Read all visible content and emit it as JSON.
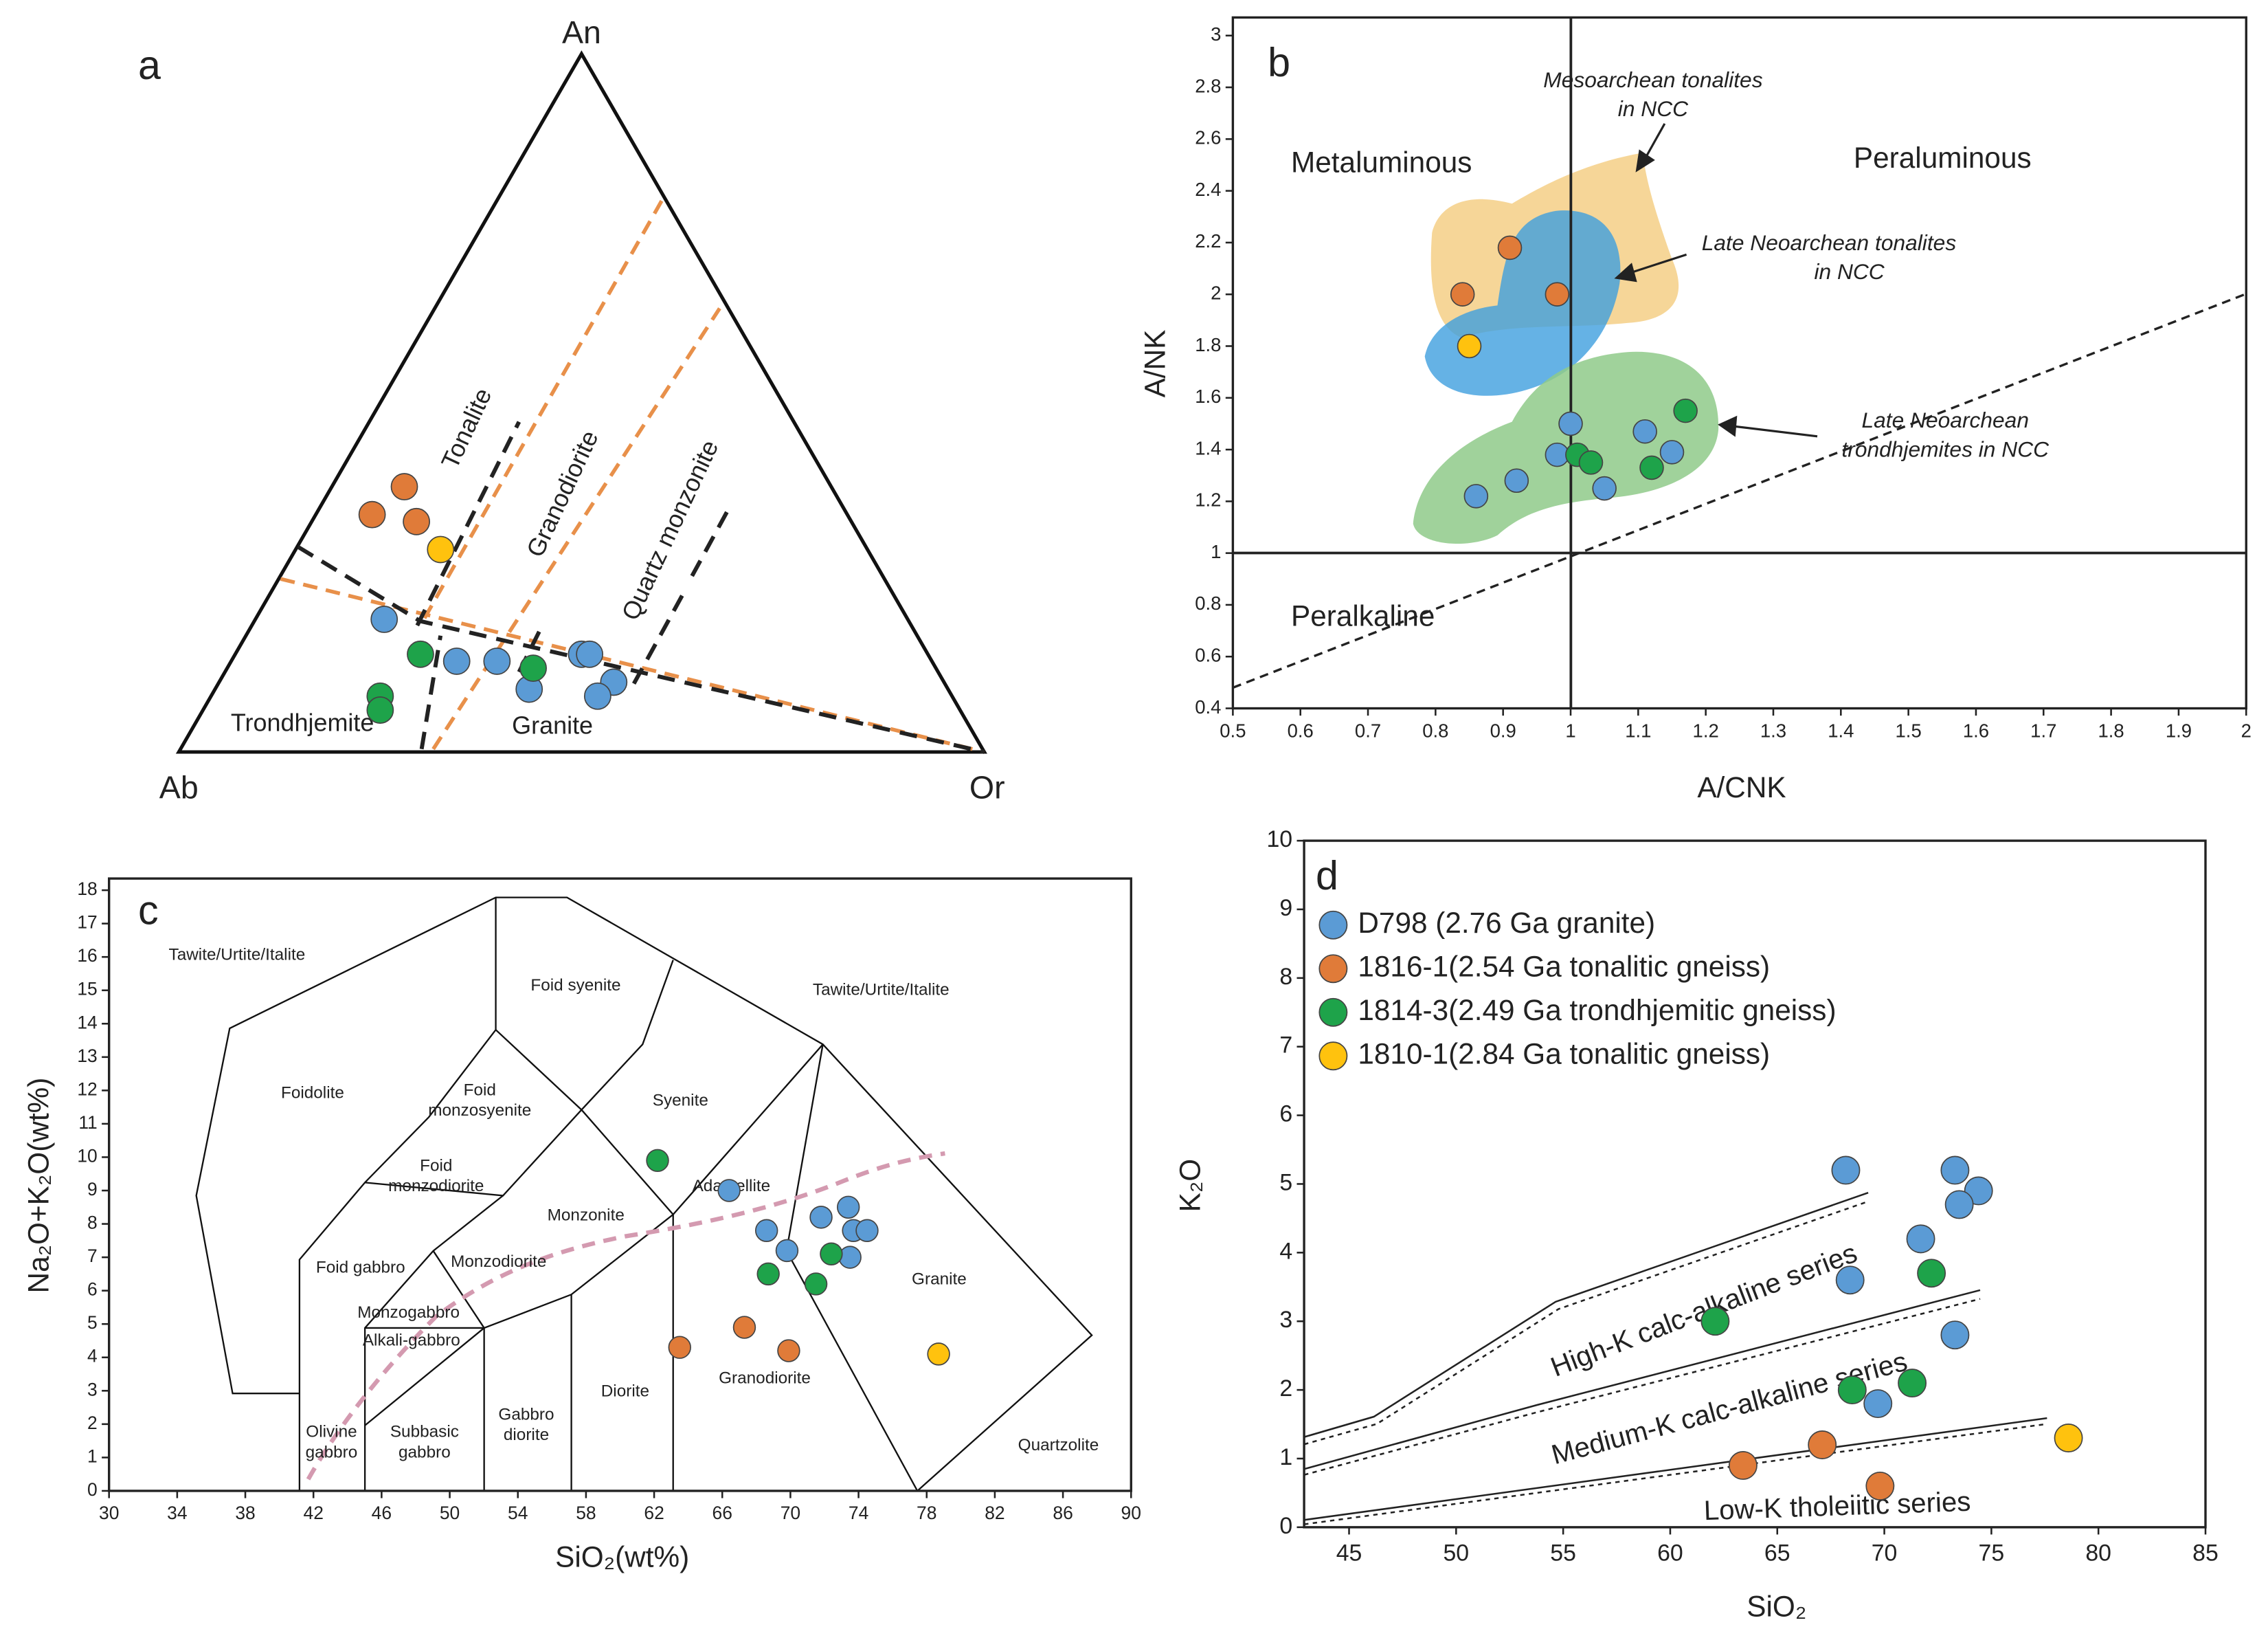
{
  "chart_data": [
    {
      "type": "ternary",
      "label": "a",
      "vertices": [
        "An",
        "Ab",
        "Or"
      ],
      "fields": [
        "Tonalite",
        "Granodiorite",
        "Quartz monzonite",
        "Trondhjemite",
        "Granite"
      ],
      "series": [
        {
          "color": "#5b9bd5",
          "An": [
            19,
            13,
            13,
            9,
            14,
            14,
            10,
            8
          ],
          "Ab": [
            65,
            59,
            54,
            52,
            43,
            42,
            41,
            44
          ],
          "Or": [
            16,
            28,
            33,
            39,
            43,
            44,
            49,
            48
          ]
        },
        {
          "color": "#e07b39",
          "An": [
            34,
            38,
            33
          ],
          "Ab": [
            59,
            53,
            54
          ],
          "Or": [
            7,
            9,
            13
          ]
        },
        {
          "color": "#1ea34a",
          "An": [
            14,
            12,
            8,
            6
          ],
          "Ab": [
            63,
            50,
            71,
            72
          ],
          "Or": [
            23,
            38,
            21,
            22
          ]
        },
        {
          "color": "#ffc20e",
          "An": [
            29
          ],
          "Ab": [
            53
          ],
          "Or": [
            18
          ]
        }
      ]
    },
    {
      "type": "scatter",
      "label": "b",
      "xlabel": "A/CNK",
      "ylabel": "A/NK",
      "xlim": [
        0.5,
        2
      ],
      "ylim": [
        0.4,
        3.07
      ],
      "xticks": [
        0.5,
        0.6,
        0.7,
        0.8,
        0.9,
        1,
        1.1,
        1.2,
        1.3,
        1.4,
        1.5,
        1.6,
        1.7,
        1.8,
        1.9,
        2
      ],
      "yticks": [
        0.4,
        0.6,
        0.8,
        1,
        1.2,
        1.4,
        1.6,
        1.8,
        2,
        2.2,
        2.4,
        2.6,
        2.8,
        3
      ],
      "fields": [
        "Metaluminous",
        "Peraluminous",
        "Peralkaline"
      ],
      "annotations": [
        [
          "Mesoarchean  tonalites",
          "in NCC"
        ],
        [
          "Late Neoarchean tonalites",
          "in NCC"
        ],
        [
          "Late Neoarchean",
          "trondhjemites in NCC"
        ]
      ],
      "series": [
        {
          "color": "#5b9bd5",
          "x": [
            0.86,
            0.92,
            0.98,
            1.0,
            1.11,
            1.15,
            1.05
          ],
          "y": [
            1.22,
            1.28,
            1.38,
            1.5,
            1.47,
            1.39,
            1.25
          ]
        },
        {
          "color": "#e07b39",
          "x": [
            0.84,
            0.91,
            0.98
          ],
          "y": [
            2.0,
            2.18,
            2.0
          ]
        },
        {
          "color": "#1ea34a",
          "x": [
            1.01,
            1.03,
            1.12,
            1.17
          ],
          "y": [
            1.38,
            1.35,
            1.33,
            1.55
          ]
        },
        {
          "color": "#ffc20e",
          "x": [
            0.85
          ],
          "y": [
            1.8
          ]
        }
      ]
    },
    {
      "type": "scatter",
      "label": "c",
      "xlabel": "SiO₂(wt%)",
      "ylabel": "Na₂O+K₂O(wt%)",
      "xlim": [
        30,
        90
      ],
      "ylim": [
        0,
        18.35
      ],
      "xticks": [
        30,
        34,
        38,
        42,
        46,
        50,
        54,
        58,
        62,
        66,
        70,
        74,
        78,
        82,
        86,
        90
      ],
      "yticks": [
        0,
        1,
        2,
        3,
        4,
        5,
        6,
        7,
        8,
        9,
        10,
        11,
        12,
        13,
        14,
        15,
        16,
        17,
        18
      ],
      "fields": [
        [
          "Tawite/Urtite/Italite"
        ],
        [
          "Foid syenite"
        ],
        [
          "Tawite/Urtite/Italite"
        ],
        [
          "Foidolite"
        ],
        [
          "Foid",
          "monzosyenite"
        ],
        [
          "Syenite"
        ],
        [
          "Foid",
          "monzodiorite"
        ],
        [
          "Adamellite"
        ],
        [
          "Monzonite"
        ],
        [
          "Foid gabbro"
        ],
        [
          "Monzodiorite"
        ],
        [
          "Granite"
        ],
        [
          "Monzogabbro"
        ],
        [
          "Alkali-gabbro"
        ],
        [
          "Granodiorite"
        ],
        [
          "Diorite"
        ],
        [
          "Gabbro",
          "diorite"
        ],
        [
          "Subbasic",
          "gabbro"
        ],
        [
          "Olivine",
          "gabbro"
        ],
        [
          "Quartzolite"
        ]
      ],
      "series": [
        {
          "color": "#5b9bd5",
          "x": [
            66.4,
            68.6,
            69.8,
            71.8,
            73.4,
            73.7,
            74.5,
            73.5
          ],
          "y": [
            9.0,
            7.8,
            7.2,
            8.2,
            8.5,
            7.8,
            7.8,
            7.0
          ]
        },
        {
          "color": "#e07b39",
          "x": [
            63.5,
            67.3,
            69.9
          ],
          "y": [
            4.3,
            4.9,
            4.2
          ]
        },
        {
          "color": "#1ea34a",
          "x": [
            62.2,
            68.7,
            71.5,
            72.4
          ],
          "y": [
            9.9,
            6.5,
            6.2,
            7.1
          ]
        },
        {
          "color": "#ffc20e",
          "x": [
            78.7
          ],
          "y": [
            4.1
          ]
        }
      ]
    },
    {
      "type": "scatter",
      "label": "d",
      "xlabel": "SiO₂",
      "ylabel": "K₂O",
      "xlim": [
        42.9,
        85
      ],
      "ylim": [
        0,
        10
      ],
      "xticks": [
        45,
        50,
        55,
        60,
        65,
        70,
        75,
        80,
        85
      ],
      "yticks": [
        0,
        1,
        2,
        3,
        4,
        5,
        6,
        7,
        8,
        9,
        10
      ],
      "legend": "upper left",
      "fields": [
        "High-K calc-alkaline series",
        "Medium-K calc-alkaline series",
        "Low-K tholeiitic series"
      ],
      "series": [
        {
          "name": "D798 (2.76 Ga granite)",
          "color": "#5b9bd5",
          "x": [
            68.2,
            73.3,
            74.4,
            73.5,
            71.7,
            68.4,
            73.3,
            69.7
          ],
          "y": [
            5.2,
            5.2,
            4.9,
            4.7,
            4.2,
            3.6,
            2.8,
            1.8
          ]
        },
        {
          "name": "1816-1(2.54 Ga tonalitic gneiss)",
          "color": "#e07b39",
          "x": [
            63.4,
            67.1,
            69.8
          ],
          "y": [
            0.9,
            1.2,
            0.6
          ]
        },
        {
          "name": "1814-3(2.49 Ga trondhjemitic gneiss)",
          "color": "#1ea34a",
          "x": [
            62.1,
            72.2,
            68.5,
            71.3
          ],
          "y": [
            3.0,
            3.7,
            2.0,
            2.1
          ]
        },
        {
          "name": "1810-1(2.84 Ga tonalitic gneiss)",
          "color": "#ffc20e",
          "x": [
            78.6
          ],
          "y": [
            1.3
          ]
        }
      ]
    }
  ]
}
